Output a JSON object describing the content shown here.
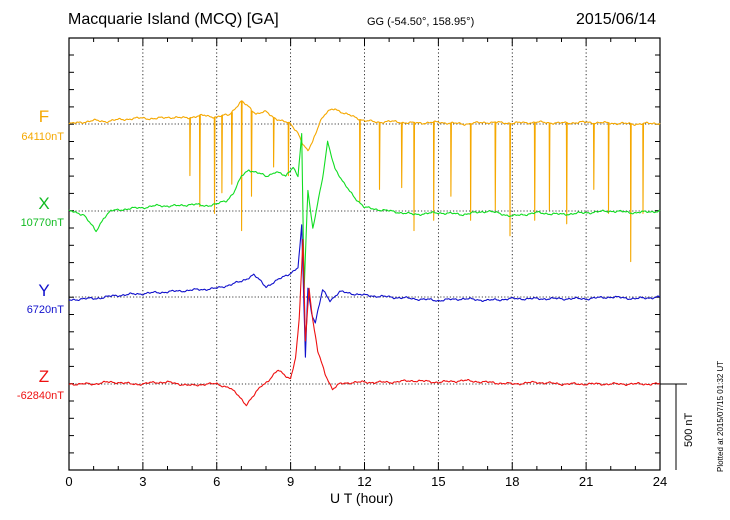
{
  "header": {
    "station": "Macquarie Island (MCQ)  [GA]",
    "coords": "GG (-54.50°, 158.95°)",
    "date": "2015/06/14"
  },
  "chart_data": {
    "type": "line",
    "xlabel": "U T (hour)",
    "xlim": [
      0,
      24
    ],
    "xticks": [
      "0",
      "3",
      "6",
      "9",
      "12",
      "15",
      "18",
      "21",
      "24"
    ],
    "grid": "dotted vertical every 3 hours",
    "scale_bar": "500 nT",
    "plotted_note": "Plotted at 2015/07/15 01:32 UT",
    "series": [
      {
        "name": "F",
        "baseline_label": "64110nT",
        "color": "#f5a800",
        "x": [
          0,
          0.5,
          1.0,
          1.5,
          2.0,
          2.5,
          3.0,
          3.5,
          4.0,
          4.5,
          5.0,
          5.5,
          6.0,
          6.5,
          6.8,
          7.0,
          7.3,
          7.6,
          8.0,
          8.3,
          8.6,
          9.0,
          9.3,
          9.5,
          9.7,
          9.9,
          10.2,
          10.5,
          10.8,
          11.2,
          11.6,
          12.0,
          12.5,
          13.0,
          14.0,
          15.0,
          16.0,
          17.0,
          18.0,
          19.0,
          20.0,
          21.0,
          22.0,
          23.0,
          24.0
        ],
        "y": [
          0,
          10,
          20,
          15,
          25,
          30,
          35,
          30,
          40,
          35,
          40,
          50,
          40,
          55,
          100,
          130,
          100,
          60,
          70,
          40,
          20,
          0,
          -50,
          -120,
          -160,
          -100,
          20,
          70,
          90,
          60,
          40,
          20,
          10,
          15,
          5,
          10,
          0,
          10,
          5,
          10,
          5,
          10,
          5,
          0,
          5
        ],
        "spike_hours": [
          4.9,
          5.3,
          5.9,
          6.2,
          6.6,
          7.0,
          7.4,
          8.3,
          8.9,
          11.8,
          12.6,
          13.5,
          14.0,
          14.8,
          15.5,
          16.3,
          17.3,
          17.9,
          18.9,
          19.5,
          20.2,
          21.3,
          21.9,
          22.8,
          23.3
        ],
        "spike_depths_nT": [
          -300,
          -480,
          -520,
          -400,
          -350,
          -620,
          -420,
          -250,
          -300,
          -450,
          -380,
          -370,
          -620,
          -560,
          -420,
          -560,
          -500,
          -650,
          -560,
          -500,
          -580,
          -380,
          -520,
          -800,
          -520
        ]
      },
      {
        "name": "X",
        "baseline_label": "10770nT",
        "color": "#11dd22",
        "x": [
          0,
          0.6,
          1.1,
          1.4,
          1.7,
          2.2,
          3.0,
          3.5,
          4.0,
          4.5,
          5.0,
          5.5,
          6.0,
          6.4,
          6.7,
          7.0,
          7.3,
          7.7,
          8.0,
          8.4,
          8.8,
          9.1,
          9.3,
          9.45,
          9.55,
          9.7,
          9.9,
          10.1,
          10.3,
          10.5,
          10.8,
          11.2,
          11.6,
          12.0,
          13.0,
          14.0,
          15.0,
          16.0,
          17.0,
          18.0,
          19.0,
          20.0,
          21.0,
          22.0,
          23.0,
          24.0
        ],
        "y": [
          0,
          -20,
          -120,
          -40,
          0,
          10,
          20,
          30,
          30,
          30,
          40,
          30,
          40,
          60,
          110,
          200,
          240,
          220,
          200,
          230,
          200,
          260,
          200,
          450,
          -450,
          120,
          -100,
          50,
          190,
          400,
          250,
          150,
          80,
          20,
          0,
          -20,
          -10,
          -20,
          0,
          -30,
          -10,
          -20,
          -10,
          0,
          -10,
          0
        ]
      },
      {
        "name": "Y",
        "baseline_label": "6720nT",
        "color": "#1111cc",
        "x": [
          0,
          0.5,
          1.0,
          1.5,
          2.0,
          3.0,
          4.0,
          5.0,
          6.0,
          7.0,
          7.5,
          8.0,
          8.5,
          9.0,
          9.3,
          9.45,
          9.6,
          9.7,
          9.85,
          10.0,
          10.3,
          10.6,
          11.0,
          11.5,
          12.0,
          13.0,
          14.0,
          15.0,
          16.0,
          17.0,
          18.0,
          19.0,
          20.0,
          21.0,
          22.0,
          23.0,
          24.0
        ],
        "y": [
          -20,
          -10,
          -10,
          0,
          10,
          20,
          30,
          40,
          50,
          90,
          130,
          60,
          100,
          140,
          170,
          420,
          -350,
          50,
          -90,
          -150,
          40,
          -20,
          30,
          20,
          10,
          0,
          -10,
          -20,
          -10,
          -20,
          -10,
          -10,
          -10,
          -10,
          0,
          -10,
          0
        ]
      },
      {
        "name": "Z",
        "baseline_label": "-62840nT",
        "color": "#ee1111",
        "x": [
          0,
          0.5,
          1.0,
          1.5,
          2.0,
          2.5,
          3.0,
          3.5,
          4.0,
          4.5,
          5.0,
          5.5,
          6.0,
          6.5,
          6.9,
          7.2,
          7.5,
          7.8,
          8.1,
          8.5,
          8.8,
          9.0,
          9.2,
          9.35,
          9.5,
          9.6,
          9.75,
          9.9,
          10.1,
          10.4,
          10.7,
          11.0,
          11.5,
          12.0,
          13.0,
          14.0,
          15.0,
          16.0,
          17.0,
          18.0,
          19.0,
          20.0,
          21.0,
          22.0,
          23.0,
          24.0
        ],
        "y": [
          0,
          0,
          0,
          10,
          10,
          0,
          0,
          10,
          10,
          0,
          -10,
          0,
          0,
          -20,
          -70,
          -120,
          -70,
          -10,
          20,
          80,
          50,
          30,
          150,
          380,
          840,
          250,
          560,
          370,
          190,
          60,
          -30,
          0,
          10,
          10,
          10,
          20,
          10,
          20,
          10,
          0,
          10,
          0,
          0,
          0,
          0,
          0
        ]
      }
    ]
  }
}
